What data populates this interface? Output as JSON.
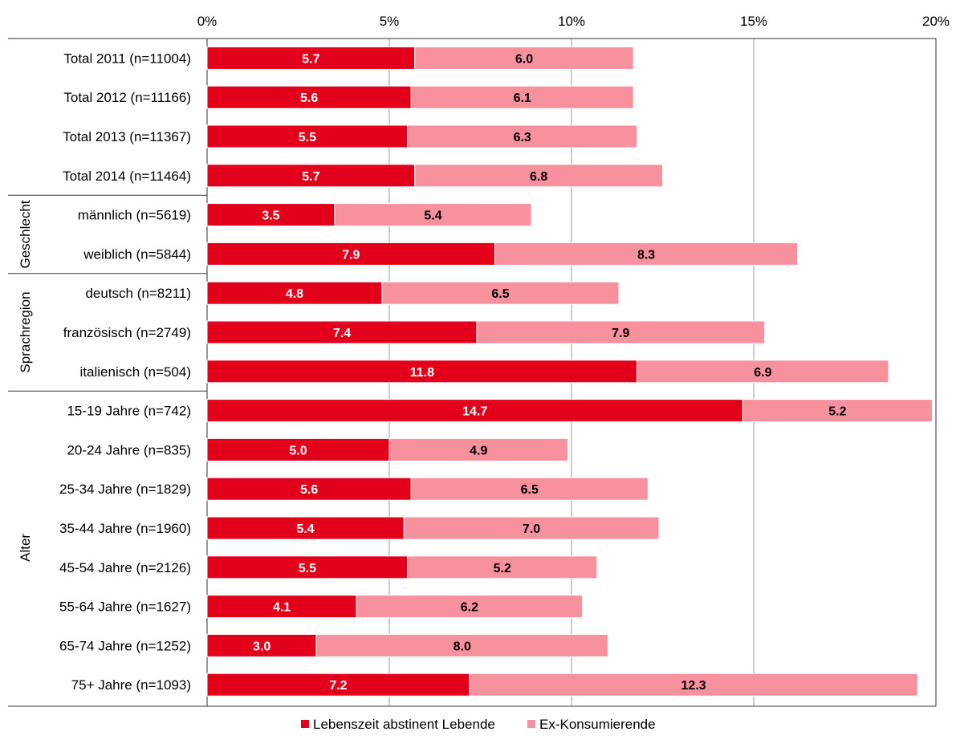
{
  "chart_data": {
    "type": "bar",
    "orientation": "horizontal",
    "stacked": true,
    "x_tick_labels": [
      "0%",
      "5%",
      "10%",
      "15%",
      "20%"
    ],
    "xlim": [
      0,
      20
    ],
    "grid": true,
    "legend_position": "bottom",
    "categories": [
      "Total 2011 (n=11004)",
      "Total 2012 (n=11166)",
      "Total 2013 (n=11367)",
      "Total 2014 (n=11464)",
      "männlich (n=5619)",
      "weiblich (n=5844)",
      "deutsch (n=8211)",
      "französisch (n=2749)",
      "italienisch (n=504)",
      "15-19 Jahre (n=742)",
      "20-24 Jahre (n=835)",
      "25-34 Jahre (n=1829)",
      "35-44 Jahre (n=1960)",
      "45-54 Jahre (n=2126)",
      "55-64 Jahre (n=1627)",
      "65-74 Jahre (n=1252)",
      "75+ Jahre (n=1093)"
    ],
    "groups": [
      {
        "label": "Geschlecht",
        "start": 4,
        "end": 5
      },
      {
        "label": "Sprachregion",
        "start": 6,
        "end": 8
      },
      {
        "label": "Alter",
        "start": 9,
        "end": 16
      }
    ],
    "series": [
      {
        "name": "Lebenszeit abstinent Lebende",
        "color": "#e2001a",
        "label_color": "#ffffff",
        "values": [
          5.7,
          5.6,
          5.5,
          5.7,
          3.5,
          7.9,
          4.8,
          7.4,
          11.8,
          14.7,
          5.0,
          5.6,
          5.4,
          5.5,
          4.1,
          3.0,
          7.2
        ]
      },
      {
        "name": "Ex-Konsumierende",
        "color": "#f8919e",
        "label_color": "#000000",
        "values": [
          6.0,
          6.1,
          6.3,
          6.8,
          5.4,
          8.3,
          6.5,
          7.9,
          6.9,
          5.2,
          4.9,
          6.5,
          7.0,
          5.2,
          6.2,
          8.0,
          12.3
        ]
      }
    ]
  }
}
